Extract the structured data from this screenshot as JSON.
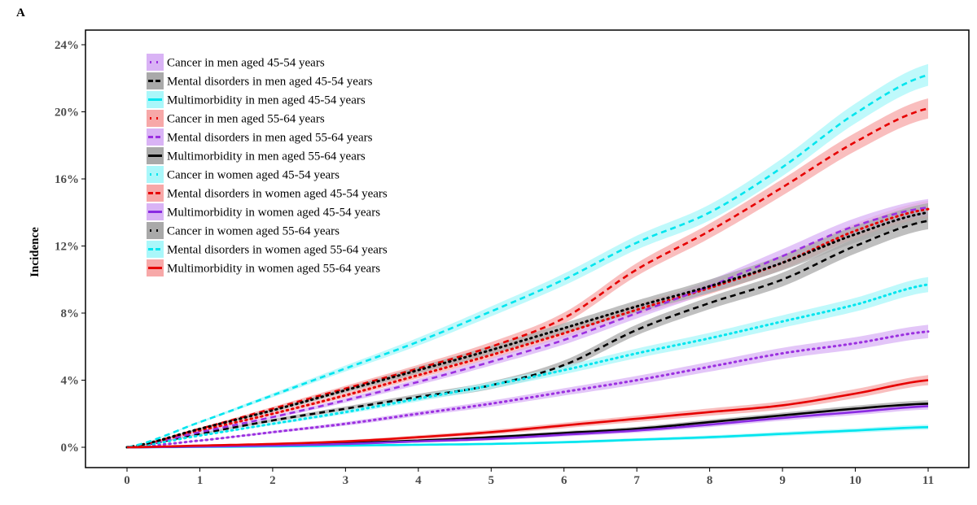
{
  "panel_label": "A",
  "chart_data": {
    "type": "line",
    "title": "",
    "xlabel": "",
    "ylabel": "Incidence",
    "xlim": [
      0,
      11
    ],
    "ylim": [
      -1,
      24.5
    ],
    "x_ticks": [
      0,
      1,
      2,
      3,
      4,
      5,
      6,
      7,
      8,
      9,
      10,
      11
    ],
    "x_tick_labels": [
      "0",
      "1",
      "2",
      "3",
      "4",
      "5",
      "6",
      "7",
      "8",
      "9",
      "10",
      "11"
    ],
    "y_ticks": [
      0,
      4,
      8,
      12,
      16,
      20,
      24
    ],
    "y_tick_labels": [
      "0%",
      "4%",
      "8%",
      "12%",
      "16%",
      "20%",
      "24%"
    ],
    "grid": false,
    "legend_position": "top-left",
    "x": [
      0,
      1,
      2,
      3,
      4,
      5,
      6,
      7,
      8,
      9,
      10,
      11
    ],
    "series": [
      {
        "name": "Cancer in men aged 45-54 years",
        "line_color": "#9b30e0",
        "band_color": "#d9b3f5",
        "dash": "dotted",
        "values": [
          0,
          0.4,
          0.9,
          1.4,
          2.0,
          2.6,
          3.3,
          4.0,
          4.8,
          5.6,
          6.2,
          6.9
        ],
        "ci_halfwidth": 0.4
      },
      {
        "name": "Mental disorders in men aged 45-54 years",
        "line_color": "#000000",
        "band_color": "#a9a9a9",
        "dash": "dashed",
        "values": [
          0,
          0.8,
          1.6,
          2.3,
          3.0,
          3.7,
          4.9,
          7.0,
          8.6,
          10.0,
          12.0,
          13.5
        ],
        "ci_halfwidth": 0.5
      },
      {
        "name": "Multimorbidity in men aged 45-54 years",
        "line_color": "#00e5ee",
        "band_color": "#aaf7fa",
        "dash": "solid",
        "values": [
          0,
          0.02,
          0.05,
          0.1,
          0.15,
          0.2,
          0.3,
          0.45,
          0.6,
          0.8,
          1.0,
          1.2
        ],
        "ci_halfwidth": 0.15
      },
      {
        "name": "Cancer in men aged 55-64 years",
        "line_color": "#e60000",
        "band_color": "#f7a8a8",
        "dash": "dotted",
        "values": [
          0,
          1.0,
          2.0,
          3.1,
          4.3,
          5.5,
          6.8,
          8.2,
          9.5,
          11.0,
          12.9,
          14.2
        ],
        "ci_halfwidth": 0.5
      },
      {
        "name": "Mental disorders in men aged 55-64 years",
        "line_color": "#9b30e0",
        "band_color": "#d9b3f5",
        "dash": "dashed",
        "values": [
          0,
          0.9,
          1.8,
          2.8,
          3.9,
          5.1,
          6.4,
          8.0,
          9.6,
          11.4,
          13.2,
          14.3
        ],
        "ci_halfwidth": 0.5
      },
      {
        "name": "Multimorbidity in men aged 55-64 years",
        "line_color": "#000000",
        "band_color": "#a9a9a9",
        "dash": "solid",
        "values": [
          0,
          0.05,
          0.12,
          0.25,
          0.4,
          0.6,
          0.85,
          1.1,
          1.5,
          1.9,
          2.3,
          2.6
        ],
        "ci_halfwidth": 0.2
      },
      {
        "name": "Cancer in women aged 45-54 years",
        "line_color": "#00e5ee",
        "band_color": "#aaf7fa",
        "dash": "dotted",
        "values": [
          0,
          0.7,
          1.4,
          2.1,
          2.9,
          3.7,
          4.6,
          5.6,
          6.5,
          7.5,
          8.5,
          9.7
        ],
        "ci_halfwidth": 0.45
      },
      {
        "name": "Mental disorders in women aged 45-54 years",
        "line_color": "#e60000",
        "band_color": "#f7a8a8",
        "dash": "dashed",
        "values": [
          0,
          1.1,
          2.3,
          3.5,
          4.7,
          6.0,
          7.7,
          10.6,
          12.9,
          15.5,
          18.2,
          20.2
        ],
        "ci_halfwidth": 0.6
      },
      {
        "name": "Multimorbidity in women aged 45-54 years",
        "line_color": "#8a2be2",
        "band_color": "#d9b3f5",
        "dash": "solid",
        "values": [
          0,
          0.04,
          0.1,
          0.2,
          0.35,
          0.5,
          0.75,
          1.0,
          1.35,
          1.75,
          2.1,
          2.45
        ],
        "ci_halfwidth": 0.2
      },
      {
        "name": "Cancer in women aged 55-64 years",
        "line_color": "#000000",
        "band_color": "#a9a9a9",
        "dash": "dotted",
        "values": [
          0,
          1.1,
          2.2,
          3.4,
          4.6,
          5.8,
          7.1,
          8.4,
          9.6,
          11.0,
          12.7,
          14.0
        ],
        "ci_halfwidth": 0.55
      },
      {
        "name": "Mental disorders in women aged 55-64 years",
        "line_color": "#00e5ee",
        "band_color": "#aaf7fa",
        "dash": "dashed",
        "values": [
          0,
          1.5,
          3.1,
          4.7,
          6.3,
          8.1,
          10.0,
          12.2,
          14.0,
          16.7,
          19.9,
          22.2
        ],
        "ci_halfwidth": 0.65
      },
      {
        "name": "Multimorbidity in women aged 55-64 years",
        "line_color": "#e60000",
        "band_color": "#f7a8a8",
        "dash": "solid",
        "values": [
          0,
          0.1,
          0.2,
          0.35,
          0.6,
          0.9,
          1.3,
          1.7,
          2.1,
          2.5,
          3.2,
          4.0
        ],
        "ci_halfwidth": 0.3
      }
    ]
  }
}
